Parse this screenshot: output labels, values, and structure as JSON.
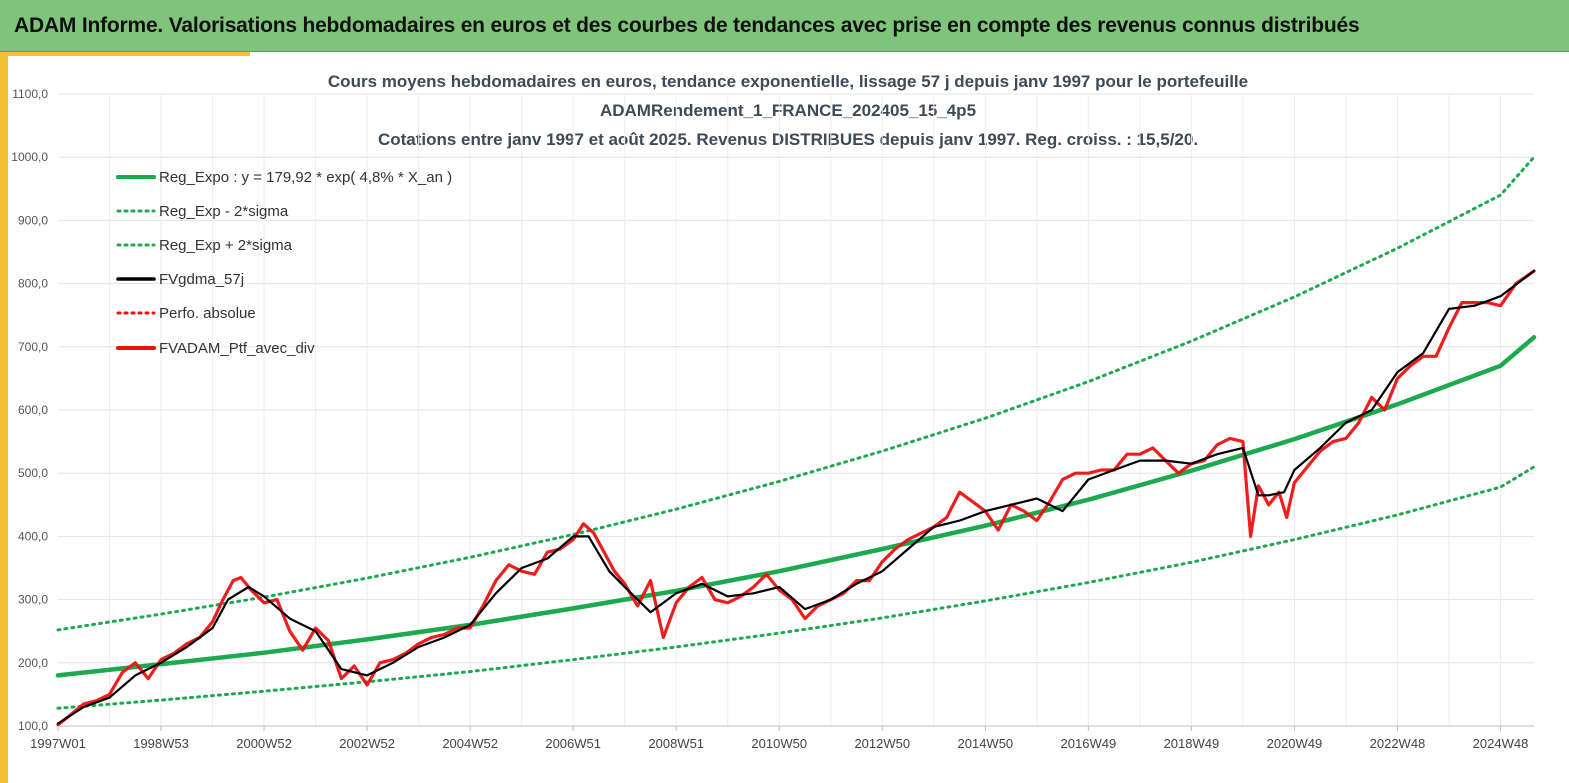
{
  "header": {
    "title": "ADAM Informe. Valorisations hebdomadaires en euros et des courbes de tendances avec prise en compte des revenus connus distribués"
  },
  "colors": {
    "header_bg": "#7fc47a",
    "accent": "#f2c230",
    "trend_green": "#1daa4e",
    "portfolio_red": "#ee1111",
    "smoothed_black": "#000000"
  },
  "chart_data": {
    "type": "line",
    "title_lines": [
      "Cours moyens hebdomadaires  en euros, tendance exponentielle, lissage 57 j depuis janv 1997 pour le portefeuille",
      "ADAMRendement_1_FRANCE_202405_15_4p5",
      "Cotations entre janv 1997 et août 2025. Revenus DISTRIBUES depuis janv 1997. Reg. croiss. : 15,5/20."
    ],
    "xlabel": "",
    "ylabel": "",
    "ylim": [
      100,
      1100
    ],
    "xlim": [
      1997.0,
      2025.65
    ],
    "grid": true,
    "legend_position": "top-left",
    "y_ticks": [
      "1100,0",
      "1000,0",
      "900,0",
      "800,0",
      "700,0",
      "600,0",
      "500,0",
      "400,0",
      "300,0",
      "200,0",
      "100,0"
    ],
    "y_tick_values": [
      1100,
      1000,
      900,
      800,
      700,
      600,
      500,
      400,
      300,
      200,
      100
    ],
    "x_ticks": [
      "1997W01",
      "1998W53",
      "2000W52",
      "2002W52",
      "2004W52",
      "2006W51",
      "2008W51",
      "2010W50",
      "2012W50",
      "2014W50",
      "2016W49",
      "2018W49",
      "2020W49",
      "2022W48",
      "2024W48"
    ],
    "x_tick_values": [
      1997.0,
      1999.0,
      2001.0,
      2003.0,
      2005.0,
      2007.0,
      2009.0,
      2011.0,
      2013.0,
      2015.0,
      2017.0,
      2019.0,
      2021.0,
      2023.0,
      2025.0
    ],
    "legend": [
      "Reg_Expo : y = 179,92 * exp( 4,8% *  X_an )",
      "Reg_Exp - 2*sigma",
      "Reg_Exp + 2*sigma",
      "FVgdma_57j",
      "Perfo. absolue",
      "FVADAM_Ptf_avec_div"
    ],
    "series": [
      {
        "name": "Reg_Expo : y = 179,92 * exp( 4,8% *  X_an )",
        "color": "#1daa4e",
        "style": "solid",
        "x": [
          1997.0,
          1999.0,
          2001.0,
          2003.0,
          2005.0,
          2007.0,
          2009.0,
          2011.0,
          2013.0,
          2015.0,
          2017.0,
          2019.0,
          2021.0,
          2023.0,
          2025.0,
          2025.65
        ],
        "y": [
          180,
          198,
          216,
          237,
          260,
          286,
          314,
          345,
          380,
          417,
          458,
          504,
          554,
          609,
          670,
          715
        ]
      },
      {
        "name": "Reg_Exp - 2*sigma",
        "color": "#1daa4e",
        "style": "dotted",
        "x": [
          1997.0,
          1999.0,
          2001.0,
          2003.0,
          2005.0,
          2007.0,
          2009.0,
          2011.0,
          2013.0,
          2015.0,
          2017.0,
          2019.0,
          2021.0,
          2023.0,
          2025.0,
          2025.65
        ],
        "y": [
          128,
          141,
          155,
          170,
          186,
          205,
          225,
          247,
          271,
          298,
          327,
          359,
          395,
          434,
          478,
          510
        ]
      },
      {
        "name": "Reg_Exp + 2*sigma",
        "color": "#1daa4e",
        "style": "dotted",
        "x": [
          1997.0,
          1999.0,
          2001.0,
          2003.0,
          2005.0,
          2007.0,
          2009.0,
          2011.0,
          2013.0,
          2015.0,
          2017.0,
          2019.0,
          2021.0,
          2023.0,
          2025.0,
          2025.65
        ],
        "y": [
          252,
          277,
          304,
          334,
          367,
          403,
          443,
          487,
          535,
          587,
          645,
          709,
          779,
          856,
          940,
          1000
        ]
      },
      {
        "name": "FVgdma_57j",
        "color": "#000000",
        "style": "solid",
        "x": [
          1997.0,
          1997.5,
          1998.0,
          1998.5,
          1999.0,
          1999.5,
          2000.0,
          2000.3,
          2000.7,
          2001.0,
          2001.5,
          2002.0,
          2002.5,
          2003.0,
          2003.5,
          2004.0,
          2004.5,
          2005.0,
          2005.5,
          2006.0,
          2006.5,
          2007.0,
          2007.3,
          2007.7,
          2008.0,
          2008.5,
          2009.0,
          2009.5,
          2010.0,
          2010.5,
          2011.0,
          2011.5,
          2012.0,
          2012.5,
          2013.0,
          2013.5,
          2014.0,
          2014.5,
          2015.0,
          2015.5,
          2016.0,
          2016.5,
          2017.0,
          2017.5,
          2018.0,
          2018.5,
          2019.0,
          2019.5,
          2020.0,
          2020.3,
          2020.5,
          2020.8,
          2021.0,
          2021.5,
          2022.0,
          2022.5,
          2023.0,
          2023.5,
          2024.0,
          2024.5,
          2025.0,
          2025.65
        ],
        "y": [
          104,
          130,
          145,
          180,
          200,
          225,
          255,
          300,
          320,
          305,
          270,
          250,
          190,
          180,
          200,
          225,
          240,
          260,
          310,
          350,
          365,
          400,
          400,
          345,
          320,
          280,
          310,
          325,
          305,
          310,
          320,
          285,
          300,
          325,
          345,
          380,
          415,
          425,
          440,
          450,
          460,
          440,
          490,
          505,
          520,
          520,
          515,
          530,
          540,
          465,
          465,
          470,
          505,
          540,
          580,
          600,
          660,
          690,
          760,
          765,
          780,
          820
        ]
      },
      {
        "name": "FVADAM_Ptf_avec_div",
        "color": "#ee1111",
        "style": "solid",
        "x": [
          1997.0,
          1997.25,
          1997.5,
          1997.75,
          1998.0,
          1998.25,
          1998.5,
          1998.75,
          1999.0,
          1999.25,
          1999.5,
          1999.75,
          2000.0,
          2000.2,
          2000.4,
          2000.55,
          2000.75,
          2001.0,
          2001.25,
          2001.5,
          2001.75,
          2002.0,
          2002.25,
          2002.5,
          2002.75,
          2003.0,
          2003.25,
          2003.5,
          2003.75,
          2004.0,
          2004.25,
          2004.5,
          2004.75,
          2005.0,
          2005.25,
          2005.5,
          2005.75,
          2006.0,
          2006.25,
          2006.5,
          2006.75,
          2007.0,
          2007.2,
          2007.4,
          2007.6,
          2007.8,
          2008.0,
          2008.25,
          2008.5,
          2008.75,
          2009.0,
          2009.25,
          2009.5,
          2009.75,
          2010.0,
          2010.25,
          2010.5,
          2010.75,
          2011.0,
          2011.25,
          2011.5,
          2011.75,
          2012.0,
          2012.25,
          2012.5,
          2012.75,
          2013.0,
          2013.25,
          2013.5,
          2013.75,
          2014.0,
          2014.25,
          2014.5,
          2014.75,
          2015.0,
          2015.25,
          2015.5,
          2015.75,
          2016.0,
          2016.25,
          2016.5,
          2016.75,
          2017.0,
          2017.25,
          2017.5,
          2017.75,
          2018.0,
          2018.25,
          2018.5,
          2018.75,
          2019.0,
          2019.25,
          2019.5,
          2019.75,
          2020.0,
          2020.15,
          2020.3,
          2020.5,
          2020.7,
          2020.85,
          2021.0,
          2021.25,
          2021.5,
          2021.75,
          2022.0,
          2022.25,
          2022.5,
          2022.75,
          2023.0,
          2023.25,
          2023.5,
          2023.75,
          2024.0,
          2024.25,
          2024.5,
          2024.75,
          2025.0,
          2025.3,
          2025.65
        ],
        "y": [
          102,
          118,
          135,
          140,
          150,
          185,
          200,
          175,
          205,
          215,
          230,
          240,
          265,
          300,
          330,
          335,
          315,
          295,
          300,
          250,
          220,
          255,
          235,
          175,
          195,
          165,
          200,
          205,
          215,
          230,
          240,
          245,
          255,
          255,
          290,
          330,
          355,
          345,
          340,
          375,
          380,
          395,
          420,
          405,
          375,
          345,
          325,
          290,
          330,
          240,
          295,
          320,
          335,
          300,
          295,
          305,
          320,
          340,
          315,
          300,
          270,
          290,
          300,
          310,
          330,
          330,
          360,
          380,
          395,
          405,
          415,
          430,
          470,
          455,
          440,
          410,
          450,
          440,
          425,
          455,
          490,
          500,
          500,
          505,
          505,
          530,
          530,
          540,
          520,
          500,
          515,
          520,
          545,
          555,
          550,
          400,
          480,
          450,
          470,
          430,
          485,
          510,
          535,
          550,
          555,
          580,
          620,
          600,
          650,
          670,
          685,
          685,
          730,
          770,
          770,
          770,
          765,
          800,
          820
        ]
      }
    ]
  }
}
